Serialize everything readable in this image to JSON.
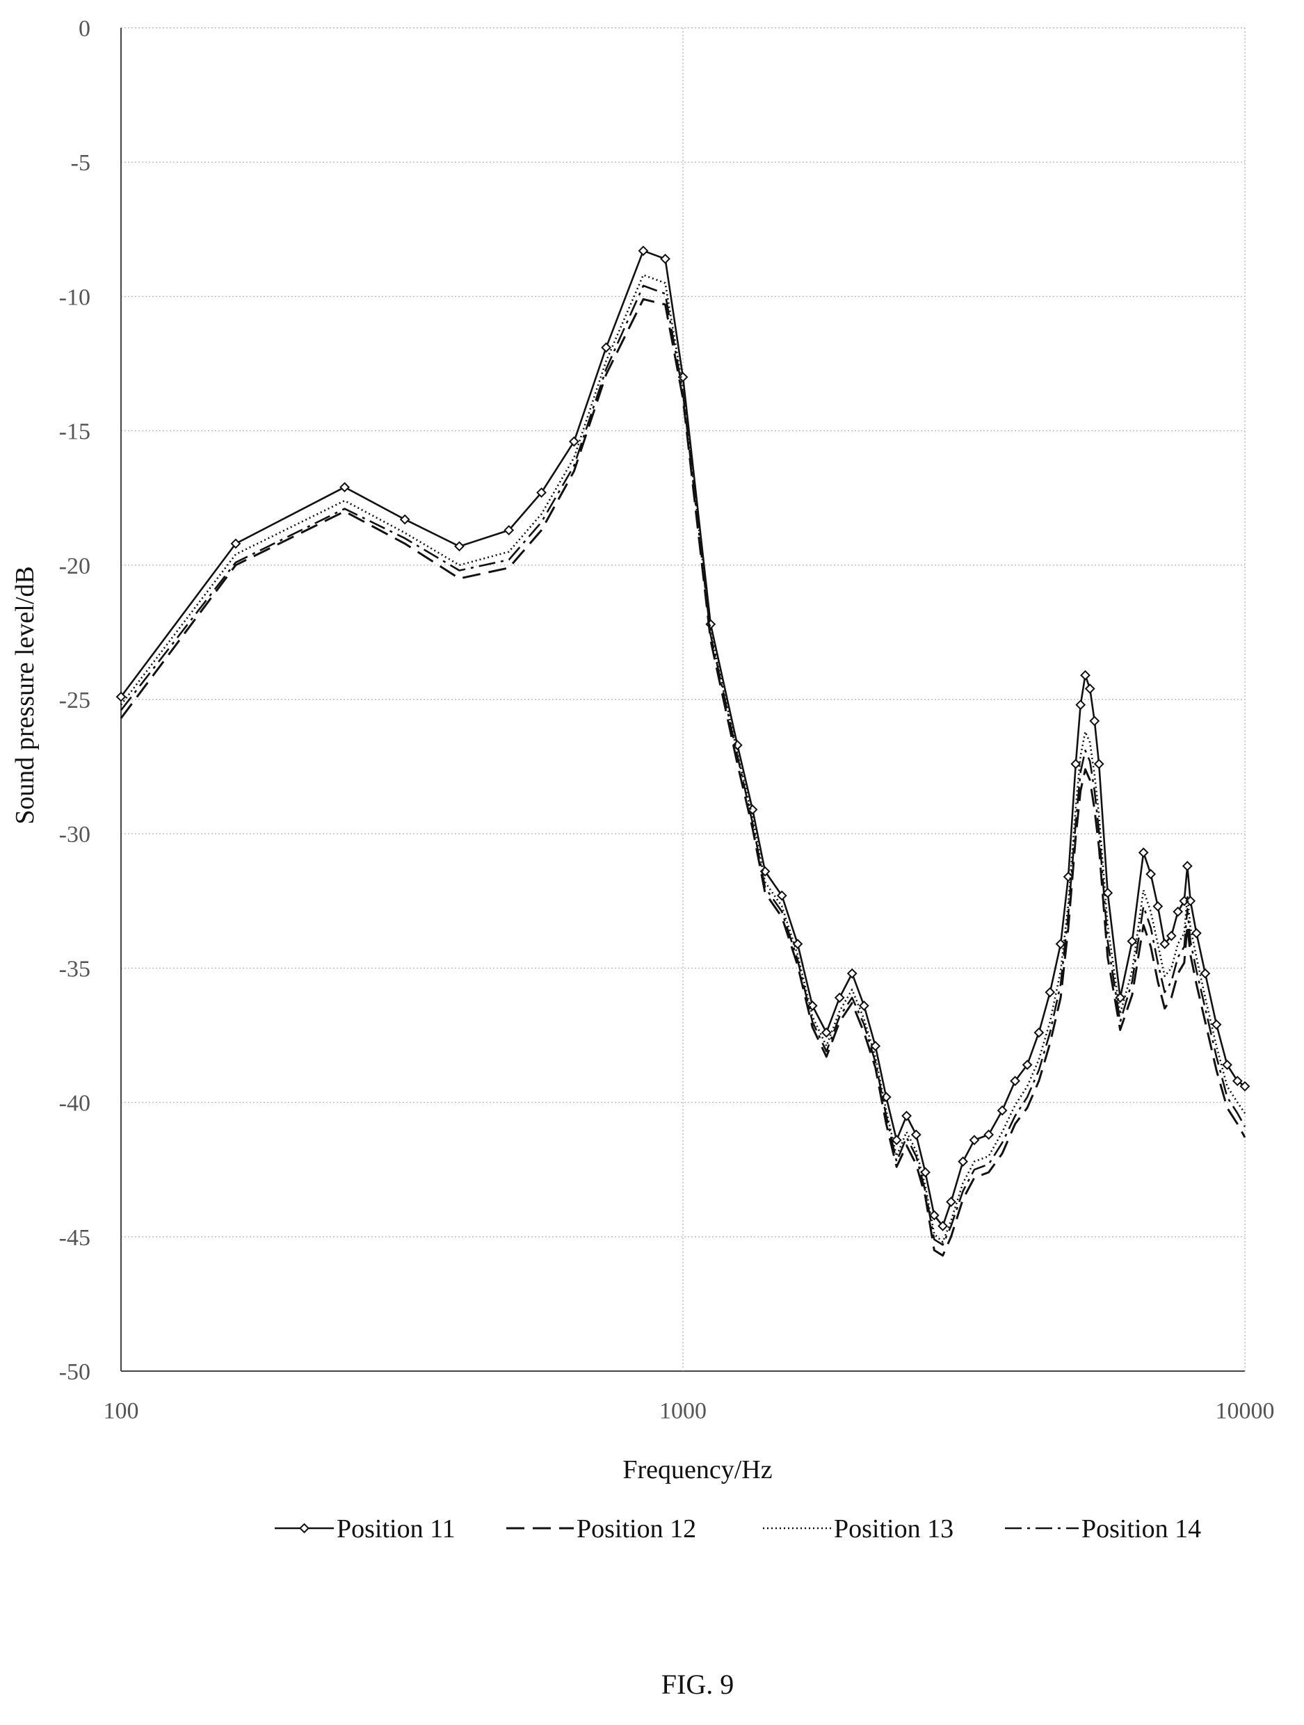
{
  "figure_caption": "FIG. 9",
  "chart_data": {
    "type": "line",
    "title": "",
    "xlabel": "Frequency/Hz",
    "ylabel": "Sound pressure level/dB",
    "xscale": "log",
    "xlim": [
      100,
      10000
    ],
    "ylim": [
      -50,
      0
    ],
    "x_ticks": [
      100,
      1000,
      10000
    ],
    "x_tick_labels": [
      "100",
      "1000",
      "10000"
    ],
    "y_ticks": [
      0,
      -5,
      -10,
      -15,
      -20,
      -25,
      -30,
      -35,
      -40,
      -45,
      -50
    ],
    "y_tick_labels": [
      "0",
      "-5",
      "-10",
      "-15",
      "-20",
      "-25",
      "-30",
      "-35",
      "-40",
      "-45",
      "-50"
    ],
    "grid": true,
    "legend_position": "bottom",
    "series": [
      {
        "name": "—◇—Position 11",
        "line_style": "solid-diamond",
        "x": [
          100,
          160,
          250,
          320,
          400,
          490,
          560,
          640,
          730,
          850,
          930,
          1000,
          1120,
          1250,
          1330,
          1400,
          1500,
          1600,
          1700,
          1800,
          1900,
          2000,
          2100,
          2200,
          2300,
          2400,
          2500,
          2600,
          2700,
          2800,
          2900,
          3000,
          3150,
          3300,
          3500,
          3700,
          3900,
          4100,
          4300,
          4500,
          4700,
          4850,
          5000,
          5100,
          5200,
          5300,
          5400,
          5500,
          5700,
          6000,
          6300,
          6600,
          6800,
          7000,
          7200,
          7400,
          7600,
          7800,
          7900,
          8000,
          8200,
          8500,
          8900,
          9300,
          9700,
          10000
        ],
        "y": [
          -24.9,
          -19.2,
          -17.1,
          -18.3,
          -19.3,
          -18.7,
          -17.3,
          -15.4,
          -11.9,
          -8.3,
          -8.6,
          -13.0,
          -22.2,
          -26.7,
          -29.1,
          -31.4,
          -32.3,
          -34.1,
          -36.4,
          -37.4,
          -36.1,
          -35.2,
          -36.4,
          -37.9,
          -39.8,
          -41.4,
          -40.5,
          -41.2,
          -42.6,
          -44.2,
          -44.6,
          -43.7,
          -42.2,
          -41.4,
          -41.2,
          -40.3,
          -39.2,
          -38.6,
          -37.4,
          -35.9,
          -34.1,
          -31.6,
          -27.4,
          -25.2,
          -24.1,
          -24.6,
          -25.8,
          -27.4,
          -32.2,
          -36.1,
          -34.0,
          -30.7,
          -31.5,
          -32.7,
          -34.1,
          -33.8,
          -32.9,
          -32.5,
          -31.2,
          -32.5,
          -33.7,
          -35.2,
          -37.1,
          -38.6,
          -39.2,
          -39.4
        ]
      },
      {
        "name": "— — -Position 12",
        "line_style": "dashed",
        "x": [
          100,
          160,
          250,
          320,
          400,
          490,
          560,
          640,
          730,
          850,
          930,
          1000,
          1120,
          1250,
          1330,
          1400,
          1500,
          1600,
          1700,
          1800,
          1900,
          2000,
          2100,
          2200,
          2300,
          2400,
          2500,
          2600,
          2700,
          2800,
          2900,
          3000,
          3150,
          3300,
          3500,
          3700,
          3900,
          4100,
          4300,
          4500,
          4700,
          4850,
          5000,
          5100,
          5200,
          5300,
          5400,
          5500,
          5700,
          6000,
          6300,
          6600,
          6800,
          7000,
          7200,
          7400,
          7600,
          7800,
          7900,
          8000,
          8200,
          8500,
          8900,
          9300,
          9700,
          10000
        ],
        "y": [
          -25.7,
          -20.0,
          -18.0,
          -19.2,
          -20.5,
          -20.1,
          -18.7,
          -16.5,
          -12.9,
          -10.1,
          -10.3,
          -13.8,
          -22.8,
          -27.4,
          -29.8,
          -32.2,
          -33.1,
          -34.9,
          -37.2,
          -38.3,
          -37.0,
          -36.3,
          -37.4,
          -38.7,
          -40.8,
          -42.4,
          -41.6,
          -42.3,
          -43.5,
          -45.5,
          -45.7,
          -45.0,
          -43.6,
          -42.8,
          -42.6,
          -41.9,
          -40.8,
          -40.2,
          -39.2,
          -37.8,
          -36.1,
          -33.5,
          -30.1,
          -28.4,
          -27.6,
          -28.0,
          -29.1,
          -30.5,
          -34.6,
          -37.3,
          -36.0,
          -33.4,
          -34.2,
          -35.5,
          -36.5,
          -36.1,
          -35.2,
          -34.8,
          -33.4,
          -34.5,
          -35.6,
          -37.0,
          -38.8,
          -40.2,
          -40.8,
          -41.3
        ]
      },
      {
        "name": "Position 13",
        "line_style": "dotted",
        "x": [
          100,
          160,
          250,
          320,
          400,
          490,
          560,
          640,
          730,
          850,
          930,
          1000,
          1120,
          1250,
          1330,
          1400,
          1500,
          1600,
          1700,
          1800,
          1900,
          2000,
          2100,
          2200,
          2300,
          2400,
          2500,
          2600,
          2700,
          2800,
          2900,
          3000,
          3150,
          3300,
          3500,
          3700,
          3900,
          4100,
          4300,
          4500,
          4700,
          4850,
          5000,
          5100,
          5200,
          5300,
          5400,
          5500,
          5700,
          6000,
          6300,
          6600,
          6800,
          7000,
          7200,
          7400,
          7600,
          7800,
          7900,
          8000,
          8200,
          8500,
          8900,
          9300,
          9700,
          10000
        ],
        "y": [
          -25.2,
          -19.6,
          -17.6,
          -18.8,
          -20.0,
          -19.5,
          -18.1,
          -16.0,
          -12.4,
          -9.2,
          -9.5,
          -13.4,
          -22.5,
          -27.0,
          -29.4,
          -31.8,
          -32.7,
          -34.5,
          -36.8,
          -37.9,
          -36.6,
          -35.8,
          -36.9,
          -38.3,
          -40.3,
          -42.0,
          -41.1,
          -41.8,
          -43.1,
          -44.9,
          -45.2,
          -44.4,
          -43.0,
          -42.2,
          -42.0,
          -41.1,
          -40.1,
          -39.4,
          -38.4,
          -37.0,
          -35.1,
          -32.6,
          -29.0,
          -27.1,
          -26.2,
          -26.6,
          -27.8,
          -29.3,
          -33.4,
          -36.7,
          -35.1,
          -32.1,
          -32.9,
          -34.1,
          -35.3,
          -35.0,
          -34.1,
          -33.7,
          -32.3,
          -33.5,
          -34.6,
          -36.1,
          -37.9,
          -39.4,
          -40.0,
          -40.4
        ]
      },
      {
        "name": "—·−Position 14",
        "line_style": "dash-dot",
        "x": [
          100,
          160,
          250,
          320,
          400,
          490,
          560,
          640,
          730,
          850,
          930,
          1000,
          1120,
          1250,
          1330,
          1400,
          1500,
          1600,
          1700,
          1800,
          1900,
          2000,
          2100,
          2200,
          2300,
          2400,
          2500,
          2600,
          2700,
          2800,
          2900,
          3000,
          3150,
          3300,
          3500,
          3700,
          3900,
          4100,
          4300,
          4500,
          4700,
          4850,
          5000,
          5100,
          5200,
          5300,
          5400,
          5500,
          5700,
          6000,
          6300,
          6600,
          6800,
          7000,
          7200,
          7400,
          7600,
          7800,
          7900,
          8000,
          8200,
          8500,
          8900,
          9300,
          9700,
          10000
        ],
        "y": [
          -25.4,
          -19.9,
          -17.9,
          -19.0,
          -20.2,
          -19.8,
          -18.4,
          -16.3,
          -12.7,
          -9.6,
          -9.9,
          -13.6,
          -22.6,
          -27.1,
          -29.6,
          -32.0,
          -32.9,
          -34.7,
          -37.0,
          -38.1,
          -36.8,
          -36.1,
          -37.1,
          -38.5,
          -40.5,
          -42.2,
          -41.3,
          -42.0,
          -43.3,
          -45.1,
          -45.3,
          -44.6,
          -43.3,
          -42.5,
          -42.3,
          -41.5,
          -40.5,
          -39.8,
          -38.8,
          -37.4,
          -35.6,
          -33.0,
          -29.6,
          -27.7,
          -26.9,
          -27.3,
          -28.4,
          -29.9,
          -34.0,
          -37.0,
          -35.5,
          -32.7,
          -33.5,
          -34.8,
          -35.9,
          -35.5,
          -34.6,
          -34.2,
          -32.8,
          -34.0,
          -35.1,
          -36.5,
          -38.3,
          -39.8,
          -40.4,
          -40.9
        ]
      }
    ]
  }
}
